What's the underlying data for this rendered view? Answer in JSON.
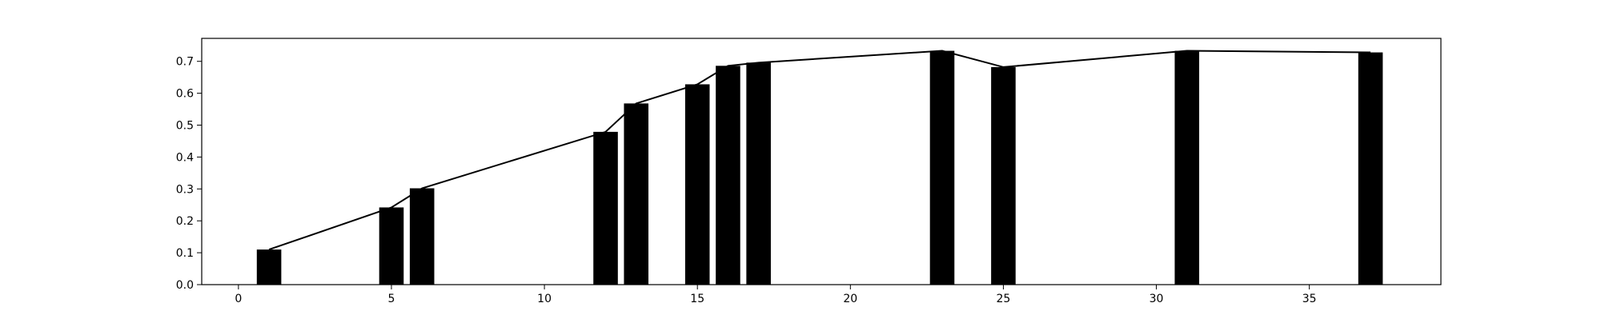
{
  "chart_data": {
    "type": "bar",
    "x": [
      1,
      5,
      6,
      12,
      13,
      15,
      16,
      17,
      23,
      25,
      31,
      37
    ],
    "series": [
      {
        "values": [
          0.11,
          0.242,
          0.302,
          0.479,
          0.568,
          0.628,
          0.686,
          0.696,
          0.733,
          0.682,
          0.733,
          0.728
        ]
      }
    ],
    "line_values": [
      0.11,
      0.242,
      0.302,
      0.479,
      0.568,
      0.628,
      0.686,
      0.696,
      0.733,
      0.682,
      0.733,
      0.728
    ],
    "bar_width": 0.8,
    "title": "",
    "xlabel": "",
    "ylabel": "",
    "xlim": [
      -1.2,
      39.3
    ],
    "ylim": [
      0,
      0.772
    ],
    "x_ticks": [
      0,
      5,
      10,
      15,
      20,
      25,
      30,
      35
    ],
    "x_tick_labels": [
      "0",
      "5",
      "10",
      "15",
      "20",
      "25",
      "30",
      "35"
    ],
    "y_ticks": [
      0.0,
      0.1,
      0.2,
      0.3,
      0.4,
      0.5,
      0.6,
      0.7
    ],
    "y_tick_labels": [
      "0.0",
      "0.1",
      "0.2",
      "0.3",
      "0.4",
      "0.5",
      "0.6",
      "0.7"
    ],
    "grid": false,
    "legend": "none",
    "colors": {
      "bar": "#000000",
      "line": "#000000",
      "axis": "#000000",
      "background": "#ffffff"
    }
  }
}
